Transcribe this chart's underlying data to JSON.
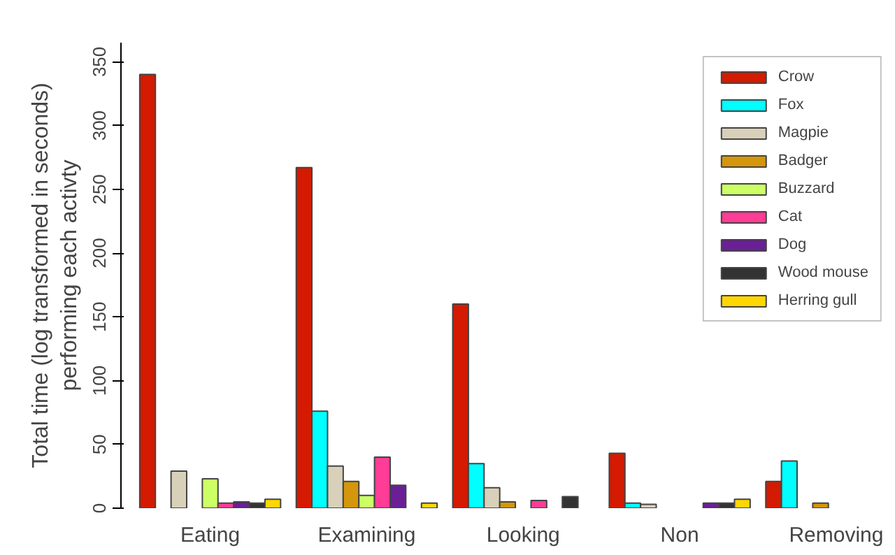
{
  "chart_data": {
    "type": "bar",
    "ylabel": "Total time (log transformed in seconds)\nperforming each activty",
    "categories": [
      "Eating",
      "Examining",
      "Looking",
      "Non",
      "Removing"
    ],
    "series": [
      {
        "name": "Crow",
        "color": "#d41a00",
        "values": [
          340,
          267,
          160,
          43,
          21
        ]
      },
      {
        "name": "Fox",
        "color": "#00ffff",
        "values": [
          null,
          76,
          35,
          4,
          37
        ]
      },
      {
        "name": "Magpie",
        "color": "#d8d0b8",
        "values": [
          29,
          33,
          16,
          3,
          null
        ]
      },
      {
        "name": "Badger",
        "color": "#d4960a",
        "values": [
          null,
          21,
          5,
          null,
          4
        ]
      },
      {
        "name": "Buzzard",
        "color": "#ccff66",
        "values": [
          23,
          10,
          null,
          null,
          null
        ]
      },
      {
        "name": "Cat",
        "color": "#ff3c96",
        "values": [
          4,
          40,
          6,
          null,
          null
        ]
      },
      {
        "name": "Dog",
        "color": "#6a1f96",
        "values": [
          5,
          18,
          null,
          4,
          null
        ]
      },
      {
        "name": "Wood mouse",
        "color": "#333333",
        "values": [
          4,
          null,
          9,
          4,
          null
        ]
      },
      {
        "name": "Herring gull",
        "color": "#ffd700",
        "values": [
          7,
          4,
          null,
          7,
          null
        ]
      }
    ],
    "ylim": [
      0,
      365
    ],
    "yticks": [
      0,
      50,
      100,
      150,
      200,
      250,
      300,
      350
    ],
    "grid": false,
    "legend": "top right"
  }
}
